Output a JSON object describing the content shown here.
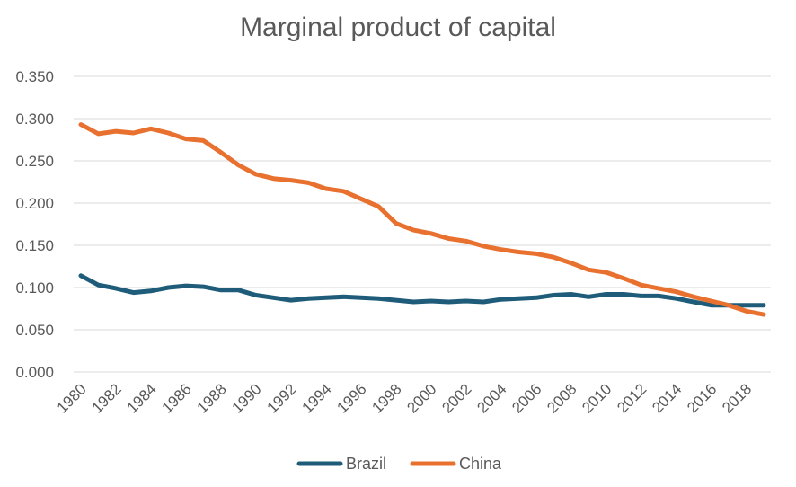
{
  "chart_data": {
    "type": "line",
    "title": "Marginal product of capital",
    "xlabel": "",
    "ylabel": "",
    "x": [
      1980,
      1981,
      1982,
      1983,
      1984,
      1985,
      1986,
      1987,
      1988,
      1989,
      1990,
      1991,
      1992,
      1993,
      1994,
      1995,
      1996,
      1997,
      1998,
      1999,
      2000,
      2001,
      2002,
      2003,
      2004,
      2005,
      2006,
      2007,
      2008,
      2009,
      2010,
      2011,
      2012,
      2013,
      2014,
      2015,
      2016,
      2017,
      2018,
      2019
    ],
    "x_tick_labels": [
      "1980",
      "1982",
      "1984",
      "1986",
      "1988",
      "1990",
      "1992",
      "1994",
      "1996",
      "1998",
      "2000",
      "2002",
      "2004",
      "2006",
      "2008",
      "2010",
      "2012",
      "2014",
      "2016",
      "2018"
    ],
    "y_tick_labels": [
      "0.000",
      "0.050",
      "0.100",
      "0.150",
      "0.200",
      "0.250",
      "0.300",
      "0.350"
    ],
    "ylim": [
      0,
      0.35
    ],
    "grid": "horizontal",
    "legend_position": "bottom",
    "series": [
      {
        "name": "Brazil",
        "color": "#1f5c7a",
        "values": [
          0.114,
          0.103,
          0.099,
          0.094,
          0.096,
          0.1,
          0.102,
          0.101,
          0.097,
          0.097,
          0.091,
          0.088,
          0.085,
          0.087,
          0.088,
          0.089,
          0.088,
          0.087,
          0.085,
          0.083,
          0.084,
          0.083,
          0.084,
          0.083,
          0.086,
          0.087,
          0.088,
          0.091,
          0.092,
          0.089,
          0.092,
          0.092,
          0.09,
          0.09,
          0.087,
          0.083,
          0.079,
          0.079,
          0.079,
          0.079
        ]
      },
      {
        "name": "China",
        "color": "#e8712f",
        "values": [
          0.293,
          0.282,
          0.285,
          0.283,
          0.288,
          0.283,
          0.276,
          0.274,
          0.26,
          0.245,
          0.234,
          0.229,
          0.227,
          0.224,
          0.217,
          0.214,
          0.205,
          0.196,
          0.176,
          0.168,
          0.164,
          0.158,
          0.155,
          0.149,
          0.145,
          0.142,
          0.14,
          0.136,
          0.129,
          0.121,
          0.118,
          0.111,
          0.103,
          0.099,
          0.095,
          0.089,
          0.084,
          0.079,
          0.072,
          0.068
        ]
      }
    ]
  }
}
